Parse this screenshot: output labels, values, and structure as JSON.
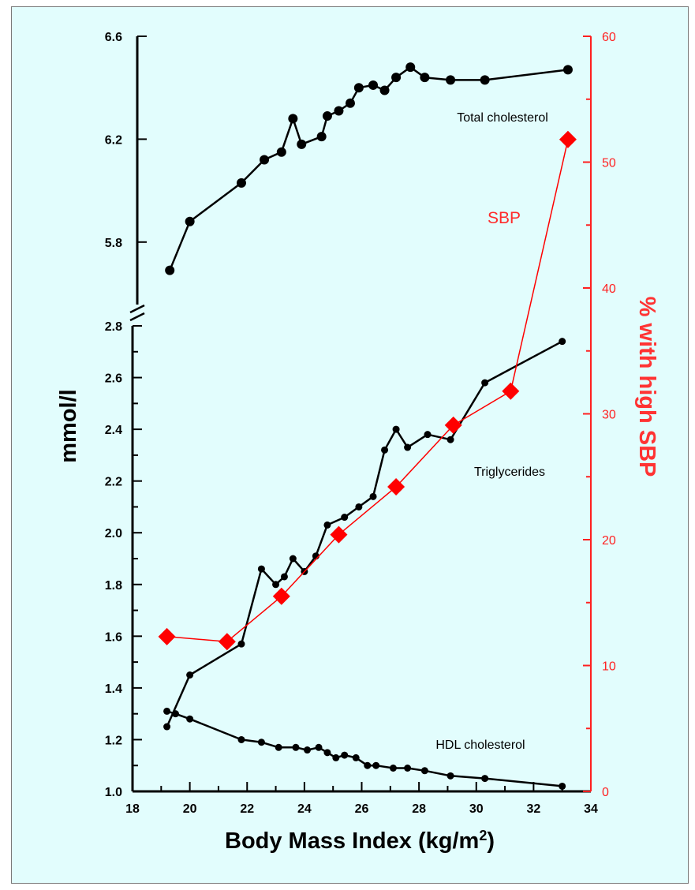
{
  "chart_data": {
    "type": "line",
    "title": "",
    "xlabel_main": "Body Mass Index (kg/m",
    "xlabel_sup": "2",
    "xlabel_close": ")",
    "ylabel_left": "mmol/l",
    "ylabel_right": "% with high SBP",
    "xlim": [
      18,
      34
    ],
    "x_ticks": [
      "18",
      "20",
      "22",
      "24",
      "26",
      "28",
      "30",
      "32",
      "34"
    ],
    "y_upper_lim": [
      5.6,
      6.6
    ],
    "y_upper_ticks": [
      "5.8",
      "6.2",
      "6.6"
    ],
    "y_lower_lim": [
      1.0,
      2.8
    ],
    "y_lower_ticks": [
      "1.0",
      "1.2",
      "1.4",
      "1.6",
      "1.8",
      "2.0",
      "2.2",
      "2.4",
      "2.6",
      "2.8"
    ],
    "y_right_lim": [
      0,
      60
    ],
    "y_right_ticks": [
      "0",
      "10",
      "20",
      "30",
      "40",
      "50",
      "60"
    ],
    "annotations": {
      "total_cholesterol": "Total cholesterol",
      "triglycerides": "Triglycerides",
      "hdl": "HDL cholesterol",
      "sbp": "SBP"
    },
    "series": [
      {
        "name": "Total cholesterol",
        "axis": "left-upper",
        "color": "#000000",
        "points": [
          [
            19.3,
            5.69
          ],
          [
            20.0,
            5.88
          ],
          [
            21.8,
            6.03
          ],
          [
            22.6,
            6.12
          ],
          [
            23.2,
            6.15
          ],
          [
            23.6,
            6.28
          ],
          [
            23.9,
            6.18
          ],
          [
            24.6,
            6.21
          ],
          [
            24.8,
            6.29
          ],
          [
            25.2,
            6.31
          ],
          [
            25.6,
            6.34
          ],
          [
            25.9,
            6.4
          ],
          [
            26.4,
            6.41
          ],
          [
            26.8,
            6.39
          ],
          [
            27.2,
            6.44
          ],
          [
            27.7,
            6.48
          ],
          [
            28.2,
            6.44
          ],
          [
            29.1,
            6.43
          ],
          [
            30.3,
            6.43
          ],
          [
            33.2,
            6.47
          ]
        ]
      },
      {
        "name": "Triglycerides",
        "axis": "left-lower",
        "color": "#000000",
        "points": [
          [
            19.2,
            1.25
          ],
          [
            20.0,
            1.45
          ],
          [
            21.8,
            1.57
          ],
          [
            22.5,
            1.86
          ],
          [
            23.0,
            1.8
          ],
          [
            23.3,
            1.83
          ],
          [
            23.6,
            1.9
          ],
          [
            24.0,
            1.85
          ],
          [
            24.4,
            1.91
          ],
          [
            24.8,
            2.03
          ],
          [
            25.4,
            2.06
          ],
          [
            25.9,
            2.1
          ],
          [
            26.4,
            2.14
          ],
          [
            26.8,
            2.32
          ],
          [
            27.2,
            2.4
          ],
          [
            27.6,
            2.33
          ],
          [
            28.3,
            2.38
          ],
          [
            29.1,
            2.36
          ],
          [
            30.3,
            2.58
          ],
          [
            33.0,
            2.74
          ]
        ]
      },
      {
        "name": "HDL cholesterol",
        "axis": "left-lower",
        "color": "#000000",
        "points": [
          [
            19.2,
            1.31
          ],
          [
            19.5,
            1.3
          ],
          [
            20.0,
            1.28
          ],
          [
            21.8,
            1.2
          ],
          [
            22.5,
            1.19
          ],
          [
            23.1,
            1.17
          ],
          [
            23.7,
            1.17
          ],
          [
            24.1,
            1.16
          ],
          [
            24.5,
            1.17
          ],
          [
            24.8,
            1.15
          ],
          [
            25.1,
            1.13
          ],
          [
            25.4,
            1.14
          ],
          [
            25.8,
            1.13
          ],
          [
            26.2,
            1.1
          ],
          [
            26.5,
            1.1
          ],
          [
            27.1,
            1.09
          ],
          [
            27.6,
            1.09
          ],
          [
            28.2,
            1.08
          ],
          [
            29.1,
            1.06
          ],
          [
            30.3,
            1.05
          ],
          [
            33.0,
            1.02
          ]
        ]
      },
      {
        "name": "SBP",
        "axis": "right",
        "color": "#ff0000",
        "points": [
          [
            19.2,
            12.3
          ],
          [
            21.3,
            11.9
          ],
          [
            23.2,
            15.5
          ],
          [
            25.2,
            20.4
          ],
          [
            27.2,
            24.2
          ],
          [
            29.2,
            29.1
          ],
          [
            31.2,
            31.8
          ],
          [
            33.2,
            51.8
          ]
        ]
      }
    ]
  }
}
